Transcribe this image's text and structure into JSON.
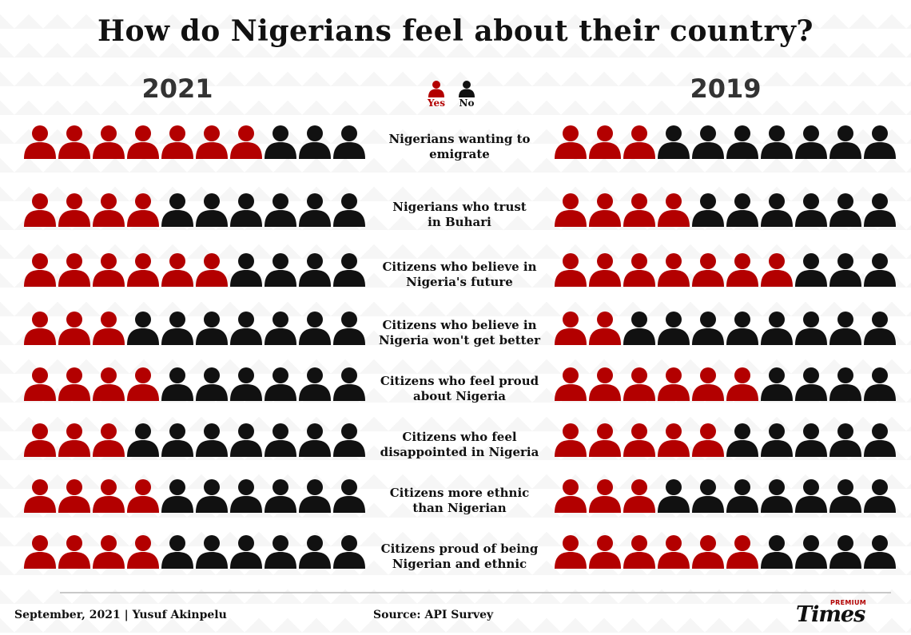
{
  "title": "How do Nigerians feel about their country?",
  "legend": {
    "yes": "Yes",
    "no": "No"
  },
  "colors": {
    "yes": "#b30000",
    "no": "#111111"
  },
  "icon": "person-icon",
  "chart_data": {
    "type": "pictograph",
    "title": "How do Nigerians feel about their country?",
    "units_per_row": 10,
    "groups": [
      "2021",
      "2019"
    ],
    "categories": [
      "Nigerians wanting to emigrate",
      "Nigerians who trust in Buhari",
      "Citizens who believe in Nigeria's future",
      "Citizens who believe in Nigeria won't get better",
      "Citizens who feel proud about Nigeria",
      "Citizens who feel disappointed in Nigeria",
      "Citizens more ethnic than Nigerian",
      "Citizens proud of being Nigerian and ethnic"
    ],
    "label_lines": [
      [
        "Nigerians wanting to",
        "emigrate"
      ],
      [
        "Nigerians who trust",
        "in Buhari"
      ],
      [
        "Citizens who believe in",
        "Nigeria's future"
      ],
      [
        "Citizens who believe in",
        "Nigeria won't get better"
      ],
      [
        "Citizens who feel proud",
        "about Nigeria"
      ],
      [
        "Citizens who feel",
        "disappointed in Nigeria"
      ],
      [
        "Citizens more ethnic",
        "than Nigerian"
      ],
      [
        "Citizens proud of being",
        "Nigerian and ethnic"
      ]
    ],
    "series": [
      {
        "name": "2021",
        "yes_counts": [
          7,
          4,
          6,
          3,
          4,
          3,
          4,
          4
        ]
      },
      {
        "name": "2019",
        "yes_counts": [
          3,
          4,
          7,
          2,
          6,
          5,
          3,
          6
        ]
      }
    ],
    "legend": [
      "Yes",
      "No"
    ]
  },
  "footer": {
    "date_author": "September, 2021 | Yusuf Akinpelu",
    "source": "Source: API Survey",
    "logo_small": "PREMIUM",
    "logo_main": "Times"
  }
}
